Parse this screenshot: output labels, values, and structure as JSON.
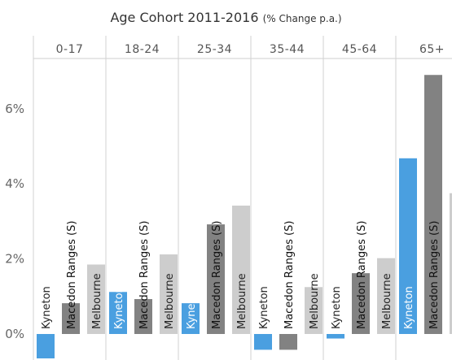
{
  "chart_data": {
    "type": "bar",
    "title": "Age Cohort 2011-2016",
    "subtitle": "(% Change p.a.)",
    "xlabel": "",
    "ylabel": "",
    "ylim": [
      0,
      7.3
    ],
    "y_tick_labels": [
      {
        "value": 0,
        "label": "0%"
      },
      {
        "value": 2,
        "label": "2%"
      },
      {
        "value": 4,
        "label": "4%"
      },
      {
        "value": 6,
        "label": "6%"
      }
    ],
    "grid": false,
    "panels": [
      "0-17",
      "18-24",
      "25-34",
      "35-44",
      "45-64",
      "65+"
    ],
    "series": [
      {
        "name": "Kyneton",
        "color": "#4a9fe0",
        "values": [
          -0.65,
          1.12,
          0.82,
          -0.42,
          -0.12,
          4.68
        ]
      },
      {
        "name": "Macedon Ranges (S)",
        "color": "#828282",
        "values": [
          0.82,
          0.93,
          2.92,
          -0.42,
          1.62,
          6.9
        ]
      },
      {
        "name": "Melbourne",
        "color": "#cdcdcd",
        "values": [
          1.85,
          2.12,
          3.42,
          1.25,
          2.02,
          3.75
        ]
      }
    ]
  }
}
